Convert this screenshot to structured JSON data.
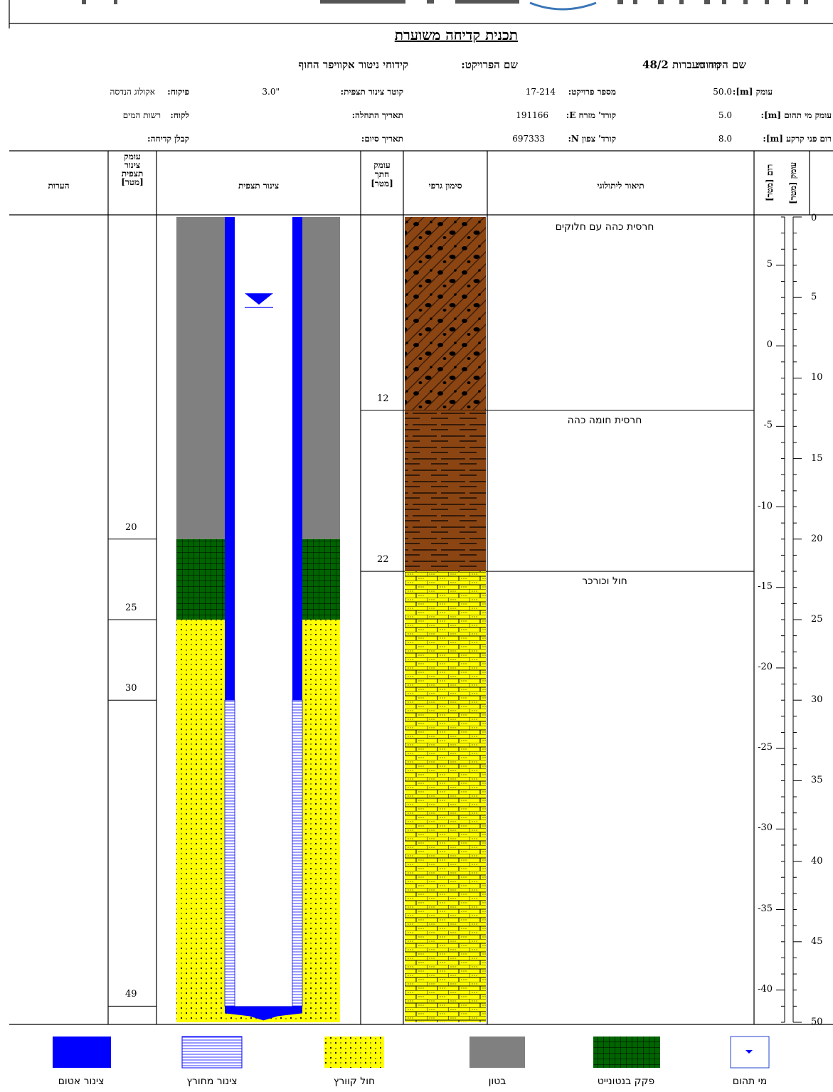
{
  "header": {
    "title": "תכנית קדיחה משוערת",
    "borehole_name_label": "שם הקידוח:",
    "borehole_name_value": "מח מעברות 48/2",
    "project_name_label": "שם הפרויקט:",
    "project_name_value": "קידוחי ניטור אקוויפר החוף",
    "depth_label": "עומק [m]:",
    "depth_value": "50.0",
    "water_depth_label": "עומק מי תהום [m]:",
    "water_depth_value": "5.0",
    "ground_elev_label": "רום פני קרקע [m]:",
    "ground_elev_value": "8.0",
    "project_no_label": "מספר פרויקט:",
    "project_no_value": "17-214",
    "coord_e_label": "קורד' מזרח E:",
    "coord_e_value": "191166",
    "coord_n_label": "קורד' צפון N:",
    "coord_n_value": "697333",
    "casing_diam_label": "קוטר צינור תצפית:",
    "casing_diam_value": "3.0\"",
    "start_date_label": "תאריך התחלה:",
    "end_date_label": "תאריך סיום:",
    "supervision_label": "פיקוח:",
    "supervision_value": "אקולוג הנדסה",
    "client_label": "לקוח:",
    "client_value": "רשות המים",
    "contractor_label": "קבלן קדיחה:"
  },
  "columns": {
    "notes": "הערות",
    "casing_depth": [
      "עומק",
      "צינור",
      "תצפית",
      "[מטר]"
    ],
    "casing": "צינור תצפית",
    "section_depth": [
      "עומק",
      "חתך",
      "[מטר]"
    ],
    "graphic": "סימון גרפי",
    "lithology": "תיאור ליתולוגי",
    "elevation": [
      "רום",
      "[מטר]"
    ],
    "depth": [
      "עומק",
      "[מטר]"
    ]
  },
  "layers": [
    {
      "from": 0,
      "to": 12,
      "description": "חרסית כהה עם חלוקים",
      "bottom_label": "12",
      "pattern": "clay-gravel"
    },
    {
      "from": 12,
      "to": 22,
      "description": "חרסית חומה כהה",
      "bottom_label": "22",
      "pattern": "clay"
    },
    {
      "from": 22,
      "to": 50,
      "description": "חול וכורכר",
      "bottom_label": "",
      "pattern": "kurkar"
    }
  ],
  "well": {
    "concrete_to": 20,
    "bentonite_to": 25,
    "blank_to": 30,
    "screen_to": 49,
    "water_level": 5,
    "casing_depth_labels": [
      "20",
      "25",
      "30",
      "49"
    ]
  },
  "depth_axis": {
    "min": 0,
    "max": 50,
    "labels": [
      "0",
      "5",
      "10",
      "15",
      "20",
      "25",
      "30",
      "35",
      "40",
      "45",
      "50"
    ]
  },
  "elevation_axis": {
    "labels": [
      "5",
      "0",
      "-5",
      "-10",
      "-15",
      "-20",
      "-25",
      "-30",
      "-35",
      "-40"
    ]
  },
  "legend": {
    "blank_casing": "צינור אטום",
    "screen": "צינור מחורץ",
    "gravel_pack": "חול קוורץ",
    "concrete": "בטון",
    "bentonite": "פקק בנטונייט",
    "groundwater": "מי תהום"
  },
  "colors": {
    "concrete": "#808080",
    "bentonite": "#006400",
    "sand": "#ffff00",
    "casing": "#0000ff",
    "clay_gravel": "#8b4513",
    "clay": "#8b4513",
    "kurkar": "#ffff00"
  }
}
